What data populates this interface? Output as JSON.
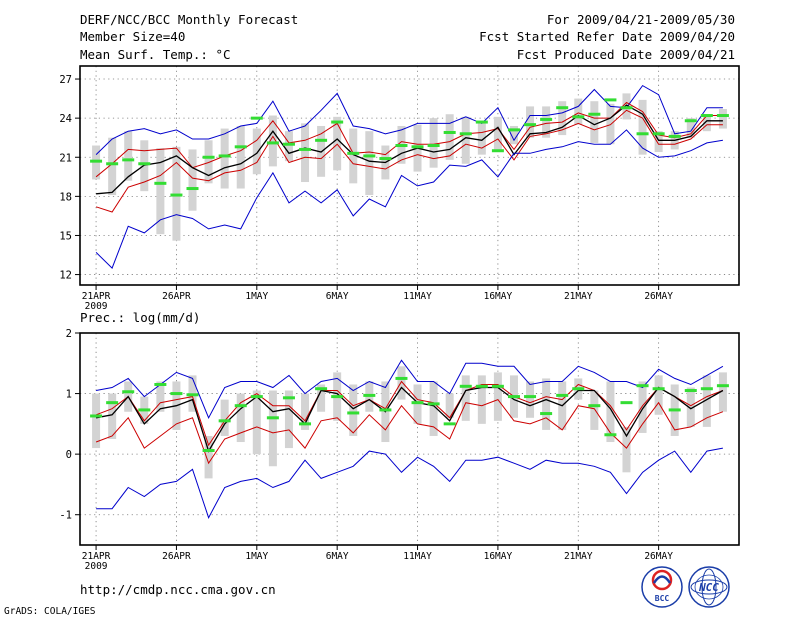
{
  "header": {
    "title": "DERF/NCC/BCC Monthly Forecast",
    "member_size": "Member Size=40",
    "variable_top": "Mean Surf. Temp.: °C",
    "for_range": "For 2009/04/21-2009/05/30",
    "fcst_started": "Fcst Started Refer Date 2009/04/20",
    "fcst_produced": "Fcst Produced Date 2009/04/21"
  },
  "footer": {
    "url": "http://cmdp.ncc.cma.gov.cn",
    "grads_credit": "GrADS: COLA/IGES",
    "logo_bcc": "BCC",
    "logo_ncc": "NCC"
  },
  "colors": {
    "mean_line": "#000000",
    "spread_line": "#cc0000",
    "extreme_line": "#0000cc",
    "member_box": "#d3d3d3",
    "observed_dash": "#33dd33"
  },
  "chart_data": [
    {
      "type": "line",
      "title": "Mean Surf. Temp.: °C",
      "ylim": [
        11.2,
        28
      ],
      "yticks": [
        12,
        15,
        18,
        21,
        24,
        27
      ],
      "xlim": [
        0,
        41
      ],
      "x": [
        1,
        2,
        3,
        4,
        5,
        6,
        7,
        8,
        9,
        10,
        11,
        12,
        13,
        14,
        15,
        16,
        17,
        18,
        19,
        20,
        21,
        22,
        23,
        24,
        25,
        26,
        27,
        28,
        29,
        30,
        31,
        32,
        33,
        34,
        35,
        36,
        37,
        38,
        39,
        40
      ],
      "xticks": [
        {
          "x": 1,
          "label": "21APR",
          "sublabel": "2009"
        },
        {
          "x": 6,
          "label": "26APR"
        },
        {
          "x": 11,
          "label": "1MAY"
        },
        {
          "x": 16,
          "label": "6MAY"
        },
        {
          "x": 21,
          "label": "11MAY"
        },
        {
          "x": 26,
          "label": "16MAY"
        },
        {
          "x": 31,
          "label": "21MAY"
        },
        {
          "x": 36,
          "label": "26MAY"
        }
      ],
      "series": [
        {
          "name": "ensemble-max",
          "color_key": "extreme_line",
          "values": [
            21.2,
            22.4,
            23.0,
            23.2,
            22.8,
            23.1,
            22.4,
            22.4,
            22.8,
            23.4,
            23.6,
            25.3,
            23.0,
            23.4,
            24.6,
            25.9,
            23.4,
            23.2,
            22.8,
            23.1,
            23.6,
            23.6,
            23.6,
            24.1,
            23.6,
            24.8,
            22.3,
            24.2,
            24.2,
            24.4,
            24.9,
            26.2,
            24.9,
            24.8,
            26.5,
            25.8,
            22.8,
            23.0,
            24.8,
            24.8
          ]
        },
        {
          "name": "ensemble-upper",
          "color_key": "spread_line",
          "values": [
            19.5,
            20.5,
            21.6,
            21.5,
            21.6,
            21.7,
            20.2,
            20.6,
            21.1,
            21.5,
            22.3,
            23.8,
            22.1,
            22.3,
            22.8,
            23.6,
            21.3,
            21.4,
            21.2,
            22.2,
            22.0,
            22.0,
            22.2,
            22.8,
            22.9,
            23.2,
            21.6,
            23.3,
            23.6,
            23.7,
            24.4,
            24.0,
            24.0,
            25.2,
            24.5,
            22.7,
            22.5,
            22.8,
            24.2,
            24.2
          ]
        },
        {
          "name": "ensemble-mean",
          "color_key": "mean_line",
          "values": [
            18.2,
            18.3,
            19.5,
            20.4,
            20.6,
            21.1,
            20.2,
            19.6,
            20.2,
            20.5,
            21.3,
            23.0,
            21.3,
            21.7,
            21.4,
            22.4,
            21.2,
            20.7,
            20.6,
            21.3,
            21.7,
            21.4,
            21.6,
            22.5,
            22.3,
            23.3,
            21.2,
            22.8,
            22.9,
            23.3,
            24.2,
            23.5,
            24.0,
            25.0,
            24.3,
            22.3,
            22.3,
            22.6,
            23.8,
            23.8
          ]
        },
        {
          "name": "ensemble-lower",
          "color_key": "spread_line",
          "values": [
            17.2,
            16.8,
            18.7,
            19.1,
            19.6,
            20.6,
            19.4,
            19.2,
            19.8,
            20.0,
            20.6,
            22.6,
            20.6,
            21.0,
            20.9,
            22.0,
            20.5,
            20.3,
            20.1,
            20.8,
            21.2,
            20.9,
            21.1,
            22.0,
            21.7,
            22.4,
            20.8,
            22.6,
            22.8,
            23.1,
            23.6,
            23.1,
            23.5,
            24.6,
            24.0,
            22.0,
            22.0,
            22.4,
            23.5,
            23.5
          ]
        },
        {
          "name": "ensemble-min",
          "color_key": "extreme_line",
          "values": [
            13.7,
            12.5,
            15.7,
            15.2,
            16.2,
            16.6,
            16.3,
            15.5,
            15.8,
            15.5,
            17.9,
            19.8,
            17.5,
            18.4,
            17.5,
            18.5,
            16.5,
            17.8,
            17.2,
            19.6,
            18.8,
            19.1,
            20.4,
            20.3,
            20.8,
            19.5,
            21.3,
            21.3,
            21.6,
            21.8,
            22.2,
            22.0,
            22.0,
            23.1,
            21.7,
            21.0,
            21.1,
            21.5,
            22.1,
            22.3
          ]
        },
        {
          "name": "observed",
          "color_key": "observed_dash",
          "style": "dash-marker",
          "values": [
            20.7,
            20.5,
            20.8,
            20.5,
            19.0,
            18.1,
            18.6,
            21.0,
            21.1,
            21.8,
            24.0,
            22.1,
            22.0,
            21.6,
            22.3,
            23.7,
            21.3,
            21.1,
            20.9,
            21.9,
            21.8,
            21.9,
            22.9,
            22.8,
            23.7,
            21.5,
            23.1,
            23.5,
            23.9,
            24.8,
            24.1,
            24.3,
            25.4,
            24.8,
            22.8,
            22.8,
            22.6,
            23.8,
            24.2,
            24.2
          ]
        }
      ],
      "member_box": {
        "low": [
          19.3,
          18.1,
          19.2,
          18.4,
          15.1,
          14.6,
          16.9,
          19.0,
          18.6,
          18.6,
          19.7,
          20.3,
          20.7,
          19.1,
          19.5,
          20.0,
          19.0,
          18.1,
          19.3,
          20.5,
          19.9,
          20.2,
          20.8,
          20.5,
          21.2,
          21.6,
          22.0,
          22.5,
          22.5,
          22.7,
          23.5,
          22.1,
          22.0,
          23.9,
          21.2,
          21.4,
          21.6,
          22.5,
          23.0,
          23.2
        ],
        "high": [
          21.9,
          22.5,
          23.0,
          22.3,
          21.7,
          21.8,
          21.6,
          22.3,
          23.2,
          23.4,
          23.2,
          24.2,
          23.0,
          23.6,
          23.4,
          24.1,
          23.2,
          23.0,
          21.9,
          23.4,
          23.5,
          24.0,
          24.3,
          24.1,
          23.6,
          24.1,
          23.4,
          24.9,
          24.9,
          25.3,
          25.5,
          25.3,
          25.1,
          25.9,
          25.4,
          23.0,
          23.0,
          24.0,
          24.1,
          24.7
        ]
      }
    },
    {
      "type": "line",
      "title": "Prec.: log(mm/d)",
      "ylim": [
        -1.5,
        2
      ],
      "yticks": [
        -1,
        0,
        1,
        2
      ],
      "xlim": [
        0,
        41
      ],
      "x": [
        1,
        2,
        3,
        4,
        5,
        6,
        7,
        8,
        9,
        10,
        11,
        12,
        13,
        14,
        15,
        16,
        17,
        18,
        19,
        20,
        21,
        22,
        23,
        24,
        25,
        26,
        27,
        28,
        29,
        30,
        31,
        32,
        33,
        34,
        35,
        36,
        37,
        38,
        39,
        40
      ],
      "xticks": [
        {
          "x": 1,
          "label": "21APR",
          "sublabel": "2009"
        },
        {
          "x": 6,
          "label": "26APR"
        },
        {
          "x": 11,
          "label": "1MAY"
        },
        {
          "x": 16,
          "label": "6MAY"
        },
        {
          "x": 21,
          "label": "11MAY"
        },
        {
          "x": 26,
          "label": "16MAY"
        },
        {
          "x": 31,
          "label": "21MAY"
        },
        {
          "x": 36,
          "label": "26MAY"
        }
      ],
      "series": [
        {
          "name": "ensemble-max",
          "color_key": "extreme_line",
          "values": [
            1.05,
            1.1,
            1.25,
            0.95,
            1.15,
            1.35,
            1.25,
            0.6,
            1.1,
            1.2,
            1.2,
            1.1,
            1.3,
            1.0,
            1.2,
            1.25,
            1.05,
            1.2,
            1.1,
            1.55,
            1.2,
            1.2,
            1.0,
            1.5,
            1.5,
            1.45,
            1.45,
            1.15,
            1.2,
            1.2,
            1.45,
            1.35,
            1.2,
            1.2,
            1.1,
            1.4,
            1.25,
            1.15,
            1.3,
            1.45
          ]
        },
        {
          "name": "ensemble-upper",
          "color_key": "spread_line",
          "values": [
            0.65,
            0.75,
            0.95,
            0.55,
            0.85,
            0.9,
            0.95,
            0.15,
            0.55,
            0.85,
            1.0,
            0.8,
            0.8,
            0.55,
            1.05,
            1.05,
            0.8,
            0.9,
            0.75,
            1.2,
            0.9,
            0.85,
            0.6,
            1.05,
            1.15,
            1.15,
            0.95,
            0.85,
            0.95,
            0.9,
            1.15,
            1.05,
            0.8,
            0.4,
            0.8,
            1.1,
            0.95,
            0.8,
            0.95,
            1.05
          ]
        },
        {
          "name": "ensemble-mean",
          "color_key": "mean_line",
          "values": [
            0.6,
            0.65,
            0.95,
            0.5,
            0.75,
            0.8,
            0.9,
            0.05,
            0.5,
            0.75,
            0.95,
            0.7,
            0.75,
            0.5,
            1.05,
            1.0,
            0.75,
            0.9,
            0.7,
            1.1,
            0.85,
            0.8,
            0.55,
            1.05,
            1.1,
            1.1,
            0.9,
            0.8,
            0.9,
            0.8,
            1.05,
            1.05,
            0.75,
            0.3,
            0.75,
            1.1,
            0.95,
            0.75,
            0.9,
            1.05
          ]
        },
        {
          "name": "ensemble-lower",
          "color_key": "spread_line",
          "values": [
            0.2,
            0.3,
            0.6,
            0.1,
            0.3,
            0.5,
            0.6,
            -0.15,
            0.25,
            0.35,
            0.45,
            0.35,
            0.4,
            0.1,
            0.55,
            0.6,
            0.35,
            0.65,
            0.4,
            0.8,
            0.5,
            0.45,
            0.25,
            0.85,
            0.8,
            0.9,
            0.55,
            0.5,
            0.6,
            0.4,
            0.8,
            0.75,
            0.35,
            0.1,
            0.5,
            0.85,
            0.4,
            0.45,
            0.6,
            0.7
          ]
        },
        {
          "name": "ensemble-min",
          "color_key": "extreme_line",
          "values": [
            -0.9,
            -0.9,
            -0.55,
            -0.7,
            -0.5,
            -0.45,
            -0.25,
            -1.05,
            -0.55,
            -0.45,
            -0.4,
            -0.55,
            -0.45,
            -0.1,
            -0.4,
            -0.3,
            -0.2,
            0.05,
            0.0,
            -0.3,
            -0.05,
            -0.2,
            -0.45,
            -0.1,
            -0.1,
            -0.05,
            -0.15,
            -0.25,
            -0.1,
            -0.15,
            -0.15,
            -0.2,
            -0.3,
            -0.65,
            -0.3,
            -0.1,
            0.05,
            -0.3,
            0.05,
            0.1
          ]
        },
        {
          "name": "observed",
          "color_key": "observed_dash",
          "style": "dash-marker",
          "values": [
            0.63,
            0.85,
            1.03,
            0.73,
            1.15,
            1.0,
            0.98,
            0.06,
            0.55,
            0.8,
            0.95,
            0.6,
            0.93,
            0.5,
            1.08,
            0.95,
            0.68,
            0.97,
            0.73,
            1.25,
            0.85,
            0.83,
            0.5,
            1.12,
            1.12,
            1.12,
            0.95,
            0.95,
            0.67,
            0.97,
            1.08,
            0.8,
            0.32,
            0.85,
            1.13,
            1.08,
            0.73,
            1.05,
            1.08,
            1.13
          ]
        }
      ],
      "member_box": {
        "low": [
          0.1,
          0.25,
          0.7,
          0.5,
          0.7,
          0.4,
          0.7,
          -0.4,
          0.3,
          0.2,
          0.0,
          -0.2,
          0.1,
          0.4,
          0.7,
          0.55,
          0.3,
          0.7,
          0.2,
          0.9,
          0.5,
          0.3,
          0.6,
          0.55,
          0.5,
          0.55,
          0.6,
          0.6,
          0.4,
          0.4,
          0.9,
          0.4,
          0.2,
          -0.3,
          0.35,
          0.65,
          0.3,
          0.45,
          0.45,
          0.7
        ],
        "high": [
          1.0,
          1.0,
          1.2,
          0.95,
          1.2,
          1.2,
          1.3,
          0.3,
          0.9,
          1.0,
          1.05,
          1.05,
          1.05,
          1.0,
          1.15,
          1.35,
          1.15,
          1.2,
          1.2,
          1.45,
          1.15,
          1.2,
          1.0,
          1.3,
          1.3,
          1.35,
          1.3,
          1.2,
          1.25,
          1.2,
          1.25,
          1.05,
          1.2,
          0.45,
          1.2,
          1.3,
          1.15,
          1.1,
          1.3,
          1.35
        ]
      }
    }
  ]
}
